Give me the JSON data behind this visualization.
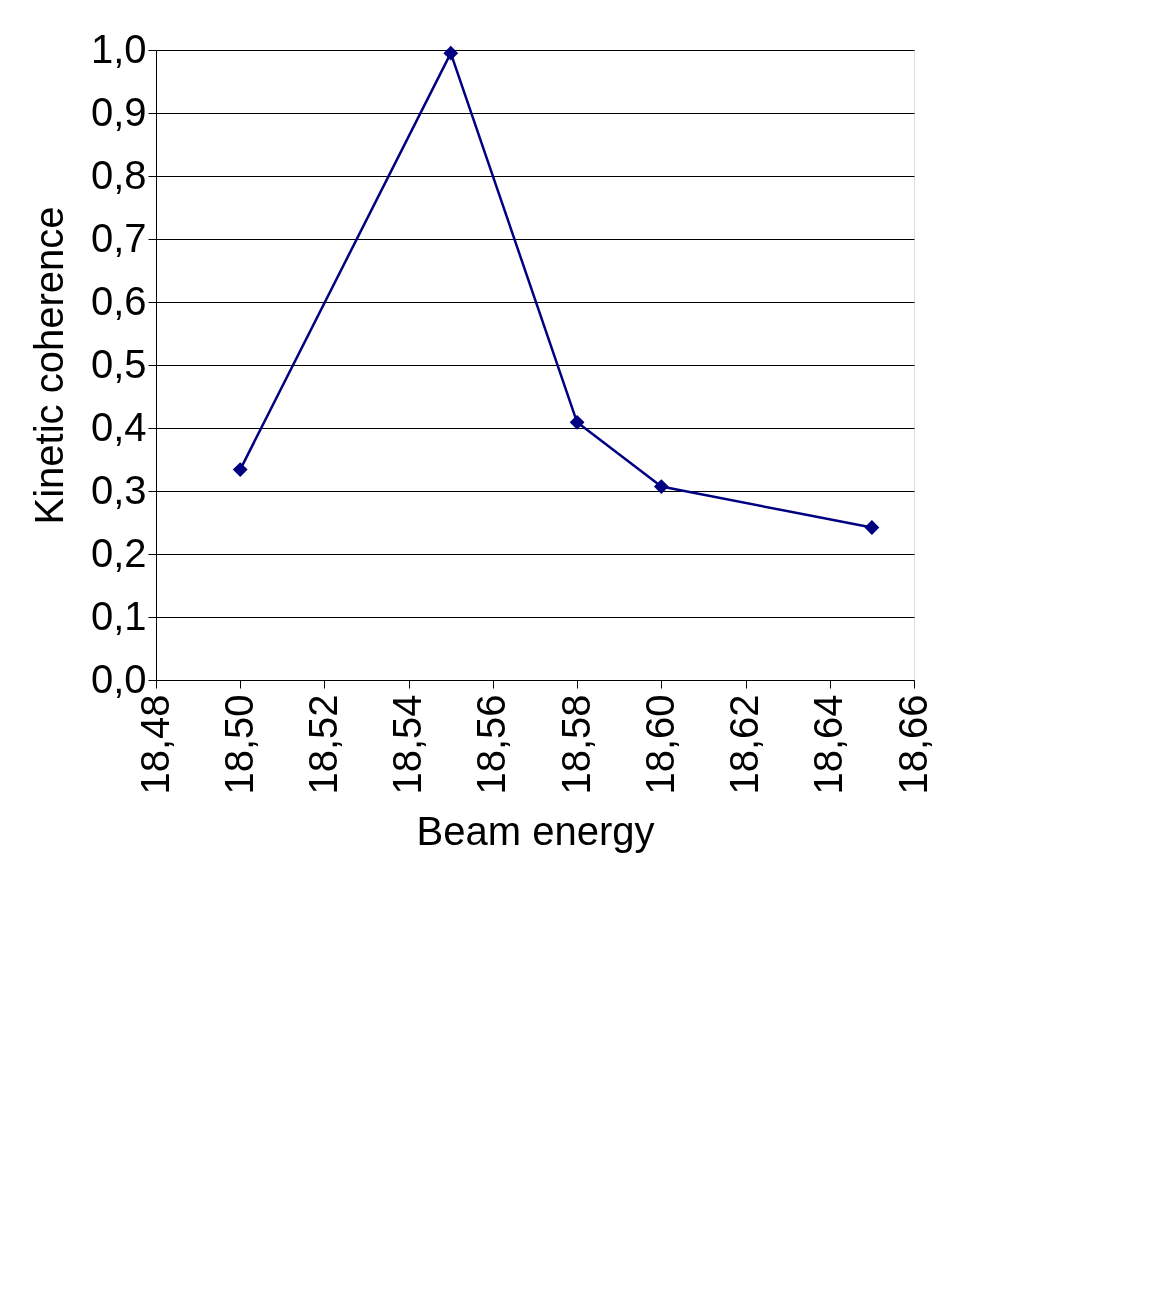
{
  "chart_data": {
    "type": "line",
    "xlabel": "Beam energy",
    "ylabel": "Kinetic coherence",
    "x": [
      18.5,
      18.55,
      18.58,
      18.6,
      18.65
    ],
    "series": [
      {
        "color": "#000080",
        "values": [
          0.334,
          0.995,
          0.409,
          0.307,
          0.242
        ]
      }
    ],
    "xlim": [
      18.48,
      18.66
    ],
    "xticks": [
      {
        "value": 18.48,
        "label": "18,48"
      },
      {
        "value": 18.5,
        "label": "18,50"
      },
      {
        "value": 18.52,
        "label": "18,52"
      },
      {
        "value": 18.54,
        "label": "18,54"
      },
      {
        "value": 18.56,
        "label": "18,56"
      },
      {
        "value": 18.58,
        "label": "18,58"
      },
      {
        "value": 18.6,
        "label": "18,60"
      },
      {
        "value": 18.62,
        "label": "18,62"
      },
      {
        "value": 18.64,
        "label": "18,64"
      },
      {
        "value": 18.66,
        "label": "18,66"
      }
    ],
    "ylim": [
      0,
      1
    ],
    "yticks": [
      {
        "value": 0,
        "label": "0,0"
      },
      {
        "value": 0.1,
        "label": "0,1"
      },
      {
        "value": 0.2,
        "label": "0,2"
      },
      {
        "value": 0.3,
        "label": "0,3"
      },
      {
        "value": 0.4,
        "label": "0,4"
      },
      {
        "value": 0.5,
        "label": "0,5"
      },
      {
        "value": 0.6,
        "label": "0,6"
      },
      {
        "value": 0.7,
        "label": "0,7"
      },
      {
        "value": 0.8,
        "label": "0,8"
      },
      {
        "value": 0.9,
        "label": "0,9"
      },
      {
        "value": 1.0,
        "label": "1,0"
      }
    ],
    "grid": "y",
    "marker": "diamond",
    "line_style": "solid"
  }
}
